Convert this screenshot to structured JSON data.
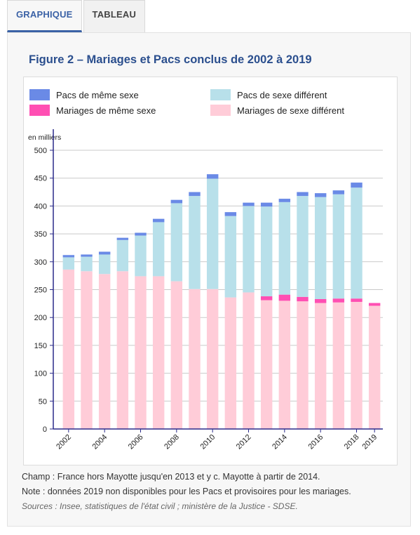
{
  "tabs": [
    {
      "label": "GRAPHIQUE",
      "active": true
    },
    {
      "label": "TABLEAU",
      "active": false
    }
  ],
  "figure_title": "Figure 2 – Mariages et Pacs conclus de 2002 à 2019",
  "notes": {
    "champ": "Champ : France hors Mayotte jusqu'en 2013 et y c. Mayotte à partir de 2014.",
    "note": "Note : données 2019 non disponibles pour les Pacs et provisoires pour les mariages.",
    "sources": "Sources : Insee, statistiques de l'état civil ; ministère de la Justice - SDSE."
  },
  "chart_data": {
    "type": "bar",
    "stacked": true,
    "ylabel": "en milliers",
    "ylim": [
      0,
      500
    ],
    "yticks": [
      0,
      50,
      100,
      150,
      200,
      250,
      300,
      350,
      400,
      450,
      500
    ],
    "grid": true,
    "legend_position": "top",
    "categories": [
      "2002",
      "2003",
      "2004",
      "2005",
      "2006",
      "2007",
      "2008",
      "2009",
      "2010",
      "2011",
      "2012",
      "2013",
      "2014",
      "2015",
      "2016",
      "2017",
      "2018",
      "2019"
    ],
    "xtick_labels": {
      "2002": "2002",
      "2004": "2004",
      "2006": "2006",
      "2008": "2008",
      "2010": "2010",
      "2012": "2012",
      "2014": "2014",
      "2016": "2016",
      "2018": "2018",
      "2019": "2019"
    },
    "series": [
      {
        "name": "Mariages de sexe différent",
        "color": "#ffccd8",
        "values": [
          286,
          283,
          278,
          283,
          274,
          274,
          265,
          251,
          251,
          236,
          245,
          231,
          230,
          229,
          226,
          227,
          228,
          221
        ]
      },
      {
        "name": "Mariages de même sexe",
        "color": "#ff4fb3",
        "values": [
          0,
          0,
          0,
          0,
          0,
          0,
          0,
          0,
          0,
          0,
          0,
          7,
          11,
          8,
          7,
          7,
          6,
          5
        ]
      },
      {
        "name": "Pacs de sexe différent",
        "color": "#b8e0ea",
        "values": [
          22,
          26,
          35,
          56,
          73,
          97,
          140,
          167,
          198,
          146,
          155,
          161,
          166,
          181,
          183,
          187,
          199,
          0
        ]
      },
      {
        "name": "Pacs de même sexe",
        "color": "#6a8ae6",
        "values": [
          4,
          4,
          5,
          4,
          5,
          6,
          6,
          7,
          8,
          7,
          6,
          7,
          6,
          7,
          7,
          7,
          9,
          0
        ]
      }
    ],
    "legend_order": [
      "Pacs de même sexe",
      "Pacs de sexe différent",
      "Mariages de même sexe",
      "Mariages de sexe différent"
    ]
  }
}
